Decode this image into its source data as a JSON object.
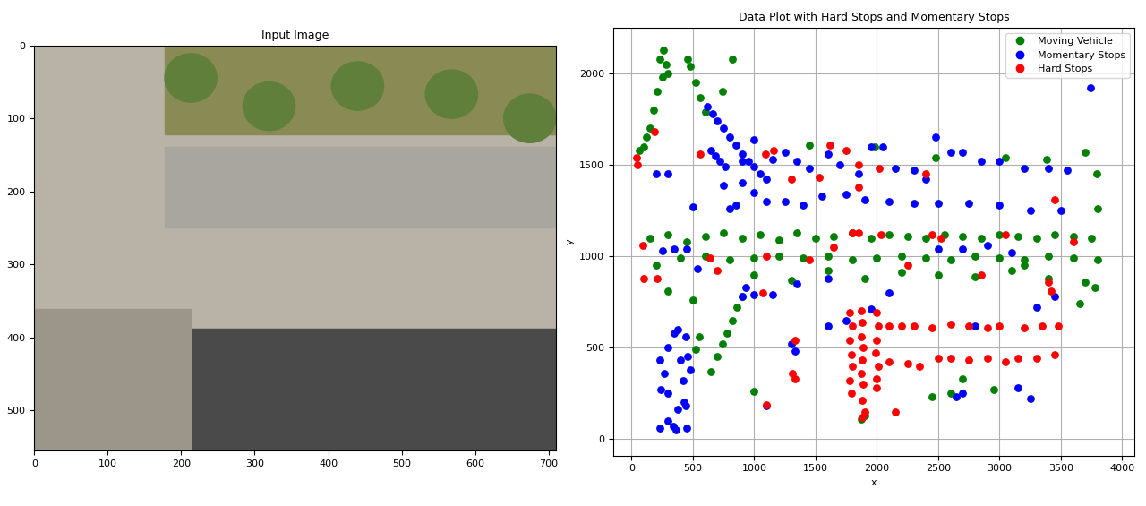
{
  "chart_data": [
    {
      "type": "image",
      "title": "Input Image",
      "xlim": [
        0,
        710
      ],
      "ylim": [
        555,
        0
      ],
      "xticks": [
        0,
        100,
        200,
        300,
        400,
        500,
        600,
        700
      ],
      "yticks": [
        0,
        100,
        200,
        300,
        400,
        500
      ]
    },
    {
      "type": "scatter",
      "title": "Data Plot with Hard Stops and Momentary Stops",
      "x_label": "x",
      "y_label": "y",
      "xlim": [
        -150,
        4100
      ],
      "ylim": [
        -90,
        2250
      ],
      "xticks": [
        0,
        500,
        1000,
        1500,
        2000,
        2500,
        3000,
        3500,
        4000
      ],
      "yticks": [
        0,
        500,
        1000,
        1500,
        2000
      ],
      "grid": true,
      "legend": "upper right",
      "marker": "o",
      "series": [
        {
          "name": "Moving Vehicle",
          "color": "green",
          "x": [
            260,
            230,
            280,
            300,
            250,
            210,
            180,
            150,
            120,
            100,
            60,
            460,
            480,
            520,
            560,
            600,
            820,
            740,
            1450,
            1980,
            2480,
            3050,
            3380,
            3700,
            3790,
            3800,
            150,
            300,
            450,
            600,
            750,
            900,
            1050,
            1200,
            1350,
            1500,
            1650,
            1800,
            1950,
            2100,
            2250,
            2400,
            2550,
            2700,
            2850,
            3000,
            3150,
            3300,
            3450,
            3600,
            3750,
            200,
            400,
            600,
            800,
            1000,
            1200,
            1400,
            1600,
            1800,
            2000,
            2200,
            2400,
            2600,
            2800,
            3000,
            3200,
            3400,
            3600,
            3800,
            1000,
            1300,
            1600,
            1900,
            2200,
            2500,
            2800,
            3100,
            3400,
            3700,
            3650,
            3780,
            500,
            300,
            650,
            700,
            740,
            780,
            820,
            860,
            900,
            2450,
            2600,
            2700,
            2950,
            1900,
            1870,
            1000,
            550,
            520,
            3200
          ],
          "y": [
            2130,
            2080,
            2050,
            2000,
            1980,
            1900,
            1800,
            1700,
            1650,
            1600,
            1580,
            2080,
            2040,
            1950,
            1870,
            1790,
            2080,
            1900,
            1610,
            1600,
            1540,
            1540,
            1530,
            1570,
            1450,
            1260,
            1100,
            1120,
            1080,
            1110,
            1130,
            1100,
            1120,
            1090,
            1130,
            1100,
            1110,
            1130,
            1100,
            1120,
            1110,
            1100,
            1120,
            1110,
            1100,
            1120,
            1110,
            1100,
            1120,
            1110,
            1100,
            950,
            990,
            1000,
            980,
            990,
            1000,
            990,
            1000,
            980,
            990,
            1000,
            990,
            980,
            1000,
            990,
            980,
            1000,
            990,
            980,
            900,
            870,
            920,
            880,
            910,
            900,
            890,
            920,
            880,
            860,
            740,
            830,
            760,
            810,
            370,
            450,
            520,
            580,
            650,
            720,
            780,
            230,
            250,
            330,
            270,
            130,
            110,
            260,
            560,
            490,
            950
          ]
        },
        {
          "name": "Momentary Stops",
          "color": "blue",
          "x": [
            620,
            660,
            700,
            750,
            800,
            850,
            900,
            950,
            1000,
            1050,
            1100,
            650,
            680,
            720,
            760,
            900,
            1000,
            1150,
            1250,
            1350,
            1450,
            1600,
            1700,
            1850,
            1950,
            2050,
            2150,
            2300,
            2400,
            2480,
            2600,
            2700,
            2850,
            3000,
            3200,
            3400,
            3550,
            1000,
            1100,
            1250,
            1400,
            1550,
            1750,
            1900,
            2100,
            2300,
            2500,
            2750,
            3000,
            3250,
            3500,
            800,
            900,
            250,
            350,
            450,
            500,
            200,
            300,
            750,
            850,
            540,
            900,
            930,
            1000,
            1150,
            1350,
            1600,
            2100,
            2500,
            2700,
            2900,
            3100,
            3450,
            3300,
            230,
            300,
            350,
            380,
            440,
            460,
            480,
            400,
            270,
            240,
            300,
            420,
            430,
            380,
            340,
            360,
            450,
            300,
            230,
            440,
            1100,
            1330,
            1300,
            1600,
            1750,
            1950,
            2700,
            2650,
            3150,
            3250,
            3740,
            2800
          ],
          "y": [
            1820,
            1780,
            1740,
            1700,
            1650,
            1610,
            1560,
            1520,
            1490,
            1450,
            1420,
            1580,
            1550,
            1520,
            1490,
            1520,
            1640,
            1530,
            1570,
            1520,
            1480,
            1560,
            1500,
            1450,
            1600,
            1600,
            1480,
            1470,
            1420,
            1650,
            1570,
            1570,
            1520,
            1520,
            1480,
            1480,
            1470,
            1350,
            1300,
            1300,
            1280,
            1330,
            1340,
            1310,
            1300,
            1290,
            1290,
            1290,
            1280,
            1250,
            1250,
            1260,
            1400,
            1030,
            1040,
            1040,
            1270,
            1450,
            1450,
            1390,
            1280,
            930,
            780,
            830,
            790,
            790,
            850,
            880,
            800,
            1040,
            1040,
            1060,
            1020,
            780,
            720,
            430,
            500,
            580,
            600,
            560,
            450,
            380,
            430,
            360,
            270,
            250,
            320,
            200,
            160,
            70,
            50,
            60,
            100,
            60,
            180,
            180,
            480,
            520,
            620,
            650,
            710,
            250,
            230,
            280,
            220,
            1920,
            620
          ]
        },
        {
          "name": "Hard Stops",
          "color": "red",
          "x": [
            1780,
            1800,
            1780,
            1790,
            1800,
            1780,
            1790,
            1870,
            1880,
            1870,
            1890,
            1880,
            1870,
            1890,
            1880,
            1900,
            1880,
            2000,
            2010,
            2000,
            1990,
            2010,
            2000,
            2000,
            2100,
            2200,
            2300,
            2450,
            2600,
            2750,
            2900,
            3000,
            3200,
            3350,
            3480,
            2100,
            2250,
            2350,
            2500,
            2600,
            2750,
            2900,
            3050,
            3150,
            3300,
            3450,
            40,
            50,
            190,
            560,
            1090,
            1160,
            1300,
            1530,
            1620,
            1750,
            1850,
            2020,
            1850,
            2400,
            3450,
            1800,
            1850,
            2030,
            2450,
            2520,
            3050,
            3600,
            1100,
            1450,
            1650,
            2250,
            2850,
            3400,
            3420,
            100,
            90,
            210,
            640,
            700,
            1070,
            1330,
            1100,
            2150,
            1310,
            1330
          ],
          "y": [
            690,
            620,
            540,
            460,
            400,
            320,
            250,
            700,
            640,
            560,
            500,
            430,
            360,
            300,
            210,
            150,
            120,
            690,
            620,
            540,
            470,
            400,
            330,
            280,
            620,
            620,
            620,
            610,
            630,
            620,
            610,
            620,
            610,
            620,
            620,
            420,
            410,
            400,
            440,
            440,
            430,
            440,
            420,
            440,
            440,
            460,
            1540,
            1500,
            1680,
            1560,
            1560,
            1580,
            1420,
            1430,
            1610,
            1580,
            1500,
            1480,
            1380,
            1450,
            1310,
            1130,
            1130,
            1120,
            1120,
            1100,
            1120,
            1080,
            1000,
            980,
            1050,
            950,
            900,
            860,
            810,
            880,
            1060,
            880,
            990,
            920,
            800,
            540,
            185,
            150,
            360,
            330
          ]
        }
      ]
    }
  ]
}
